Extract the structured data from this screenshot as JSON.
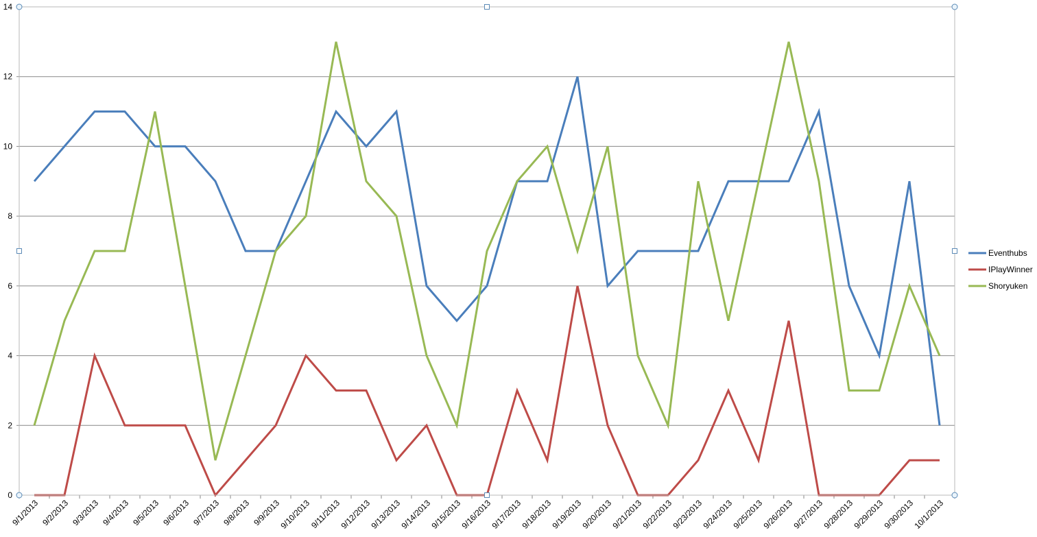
{
  "chart_data": {
    "type": "line",
    "title": "",
    "xlabel": "",
    "ylabel": "",
    "ylim": [
      0,
      14
    ],
    "yticks": [
      0,
      2,
      4,
      6,
      8,
      10,
      12,
      14
    ],
    "grid": true,
    "legend_position": "right",
    "categories": [
      "9/1/2013",
      "9/2/2013",
      "9/3/2013",
      "9/4/2013",
      "9/5/2013",
      "9/6/2013",
      "9/7/2013",
      "9/8/2013",
      "9/9/2013",
      "9/10/2013",
      "9/11/2013",
      "9/12/2013",
      "9/13/2013",
      "9/14/2013",
      "9/15/2013",
      "9/16/2013",
      "9/17/2013",
      "9/18/2013",
      "9/19/2013",
      "9/20/2013",
      "9/21/2013",
      "9/22/2013",
      "9/23/2013",
      "9/24/2013",
      "9/25/2013",
      "9/26/2013",
      "9/27/2013",
      "9/28/2013",
      "9/29/2013",
      "9/30/2013",
      "10/1/2013"
    ],
    "series": [
      {
        "name": "Eventhubs",
        "color": "#4a7ebb",
        "values": [
          9,
          10,
          11,
          11,
          10,
          10,
          9,
          7,
          7,
          9,
          11,
          10,
          11,
          6,
          5,
          6,
          9,
          9,
          12,
          6,
          7,
          7,
          7,
          9,
          9,
          9,
          11,
          6,
          4,
          9,
          2
        ]
      },
      {
        "name": "IPlayWinner",
        "color": "#be4b48",
        "values": [
          0,
          0,
          4,
          2,
          2,
          2,
          0,
          1,
          2,
          4,
          3,
          3,
          1,
          2,
          0,
          0,
          3,
          1,
          6,
          2,
          0,
          0,
          1,
          3,
          1,
          5,
          0,
          0,
          0,
          1,
          1
        ]
      },
      {
        "name": "Shoryuken",
        "color": "#98b954",
        "values": [
          2,
          5,
          7,
          7,
          11,
          6,
          1,
          4,
          7,
          8,
          13,
          9,
          8,
          4,
          2,
          7,
          9,
          10,
          7,
          10,
          4,
          2,
          9,
          5,
          9,
          13,
          9,
          3,
          3,
          6,
          4
        ]
      }
    ]
  }
}
